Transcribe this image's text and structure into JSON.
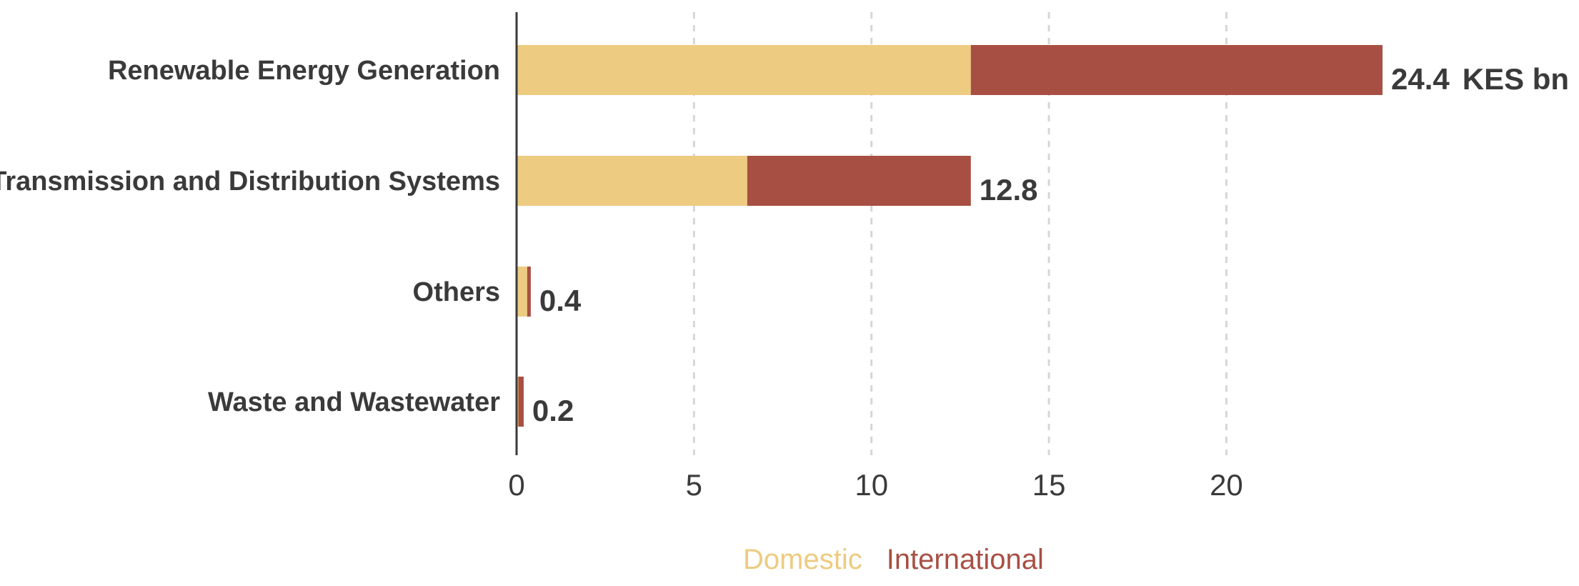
{
  "chart_data": {
    "type": "bar",
    "orientation": "horizontal",
    "stacked": true,
    "categories": [
      "Renewable Energy Generation",
      "Transmission and Distribution Systems",
      "Others",
      "Waste and Wastewater"
    ],
    "series": [
      {
        "name": "Domestic",
        "color": "#EDCB80",
        "values": [
          12.8,
          6.5,
          0.3,
          0.05
        ]
      },
      {
        "name": "International",
        "color": "#A84F43",
        "values": [
          11.6,
          6.3,
          0.1,
          0.15
        ]
      }
    ],
    "totals": [
      24.4,
      12.8,
      0.4,
      0.2
    ],
    "total_labels": [
      "24.4",
      "12.8",
      "0.4",
      "0.2"
    ],
    "unit_label": "KES bn",
    "xticks": [
      0,
      5,
      10,
      15,
      20
    ],
    "xlim": [
      0,
      24.4
    ],
    "grid": true,
    "legend_position": "bottom-center"
  }
}
